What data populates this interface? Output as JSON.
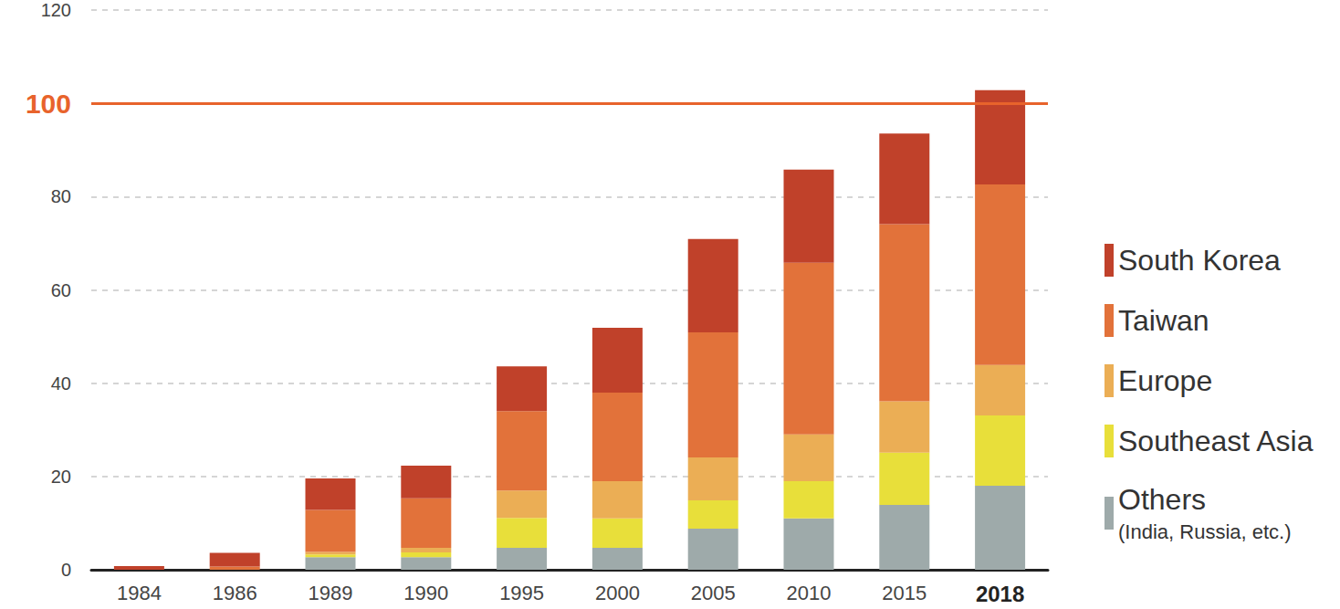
{
  "chart_data": {
    "type": "bar",
    "stacked": true,
    "grid": true,
    "legend": "right",
    "categories": [
      "1984",
      "1986",
      "1989",
      "1990",
      "1995",
      "2000",
      "2005",
      "2010",
      "2015",
      "2018"
    ],
    "series": [
      {
        "name": "South Korea",
        "color": "#c0412a",
        "values": [
          0.8,
          2.9,
          6.8,
          7.0,
          9.6,
          13.9,
          20.0,
          20.0,
          19.4,
          20.2
        ]
      },
      {
        "name": "Taiwan",
        "color": "#e2723a",
        "values": [
          0,
          0.7,
          9.0,
          10.6,
          17.0,
          19.0,
          26.8,
          36.8,
          38.0,
          38.7
        ]
      },
      {
        "name": "Europe",
        "color": "#ebae55",
        "values": [
          0,
          0,
          0.5,
          1.0,
          5.9,
          8.0,
          9.2,
          10.0,
          11.0,
          10.8
        ]
      },
      {
        "name": "Southeast Asia",
        "color": "#e8df3a",
        "values": [
          0,
          0,
          0.6,
          1.0,
          6.4,
          6.3,
          6.1,
          8.0,
          11.2,
          15.1
        ]
      },
      {
        "name": "Others (India, Russia, etc.)",
        "color": "#9eaaaa",
        "values": [
          0,
          0,
          2.7,
          2.7,
          4.7,
          4.7,
          8.8,
          11.0,
          13.9,
          18.0
        ]
      }
    ],
    "ylim": [
      0,
      120
    ],
    "yticks": [
      0,
      20,
      40,
      60,
      80,
      100,
      120
    ],
    "annotations": [
      {
        "y": 100,
        "color": "#e8632b"
      }
    ]
  }
}
